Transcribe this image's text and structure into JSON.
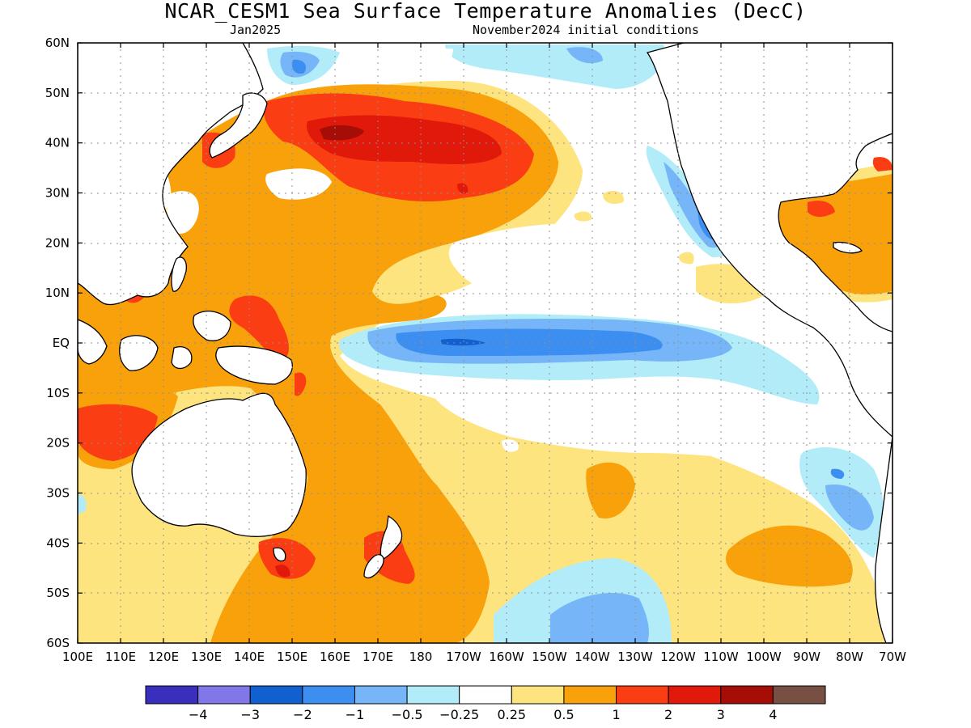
{
  "header": {
    "title": "NCAR_CESM1 Sea Surface Temperature Anomalies (DecC)",
    "valid_time": "Jan2025",
    "init_label": "November2024 initial conditions"
  },
  "map": {
    "lat_labels": [
      "60N",
      "50N",
      "40N",
      "30N",
      "20N",
      "10N",
      "EQ",
      "10S",
      "20S",
      "30S",
      "40S",
      "50S",
      "60S"
    ],
    "lon_labels": [
      "100E",
      "110E",
      "120E",
      "130E",
      "140E",
      "150E",
      "160E",
      "170E",
      "180",
      "170W",
      "160W",
      "150W",
      "140W",
      "130W",
      "120W",
      "110W",
      "100W",
      "90W",
      "80W",
      "70W"
    ]
  },
  "colorbar": {
    "colors": [
      "#3a2fbd",
      "#8177e8",
      "#1060d0",
      "#3c8ef0",
      "#76b6f8",
      "#b1ecf8",
      "#ffffff",
      "#fde47e",
      "#f9a10b",
      "#fa3d12",
      "#e0190a",
      "#a50d06",
      "#785043"
    ],
    "labels": [
      "−4",
      "−3",
      "−2",
      "−1",
      "−0.5",
      "−0.25",
      "0.25",
      "0.5",
      "1",
      "2",
      "3",
      "4"
    ]
  }
}
